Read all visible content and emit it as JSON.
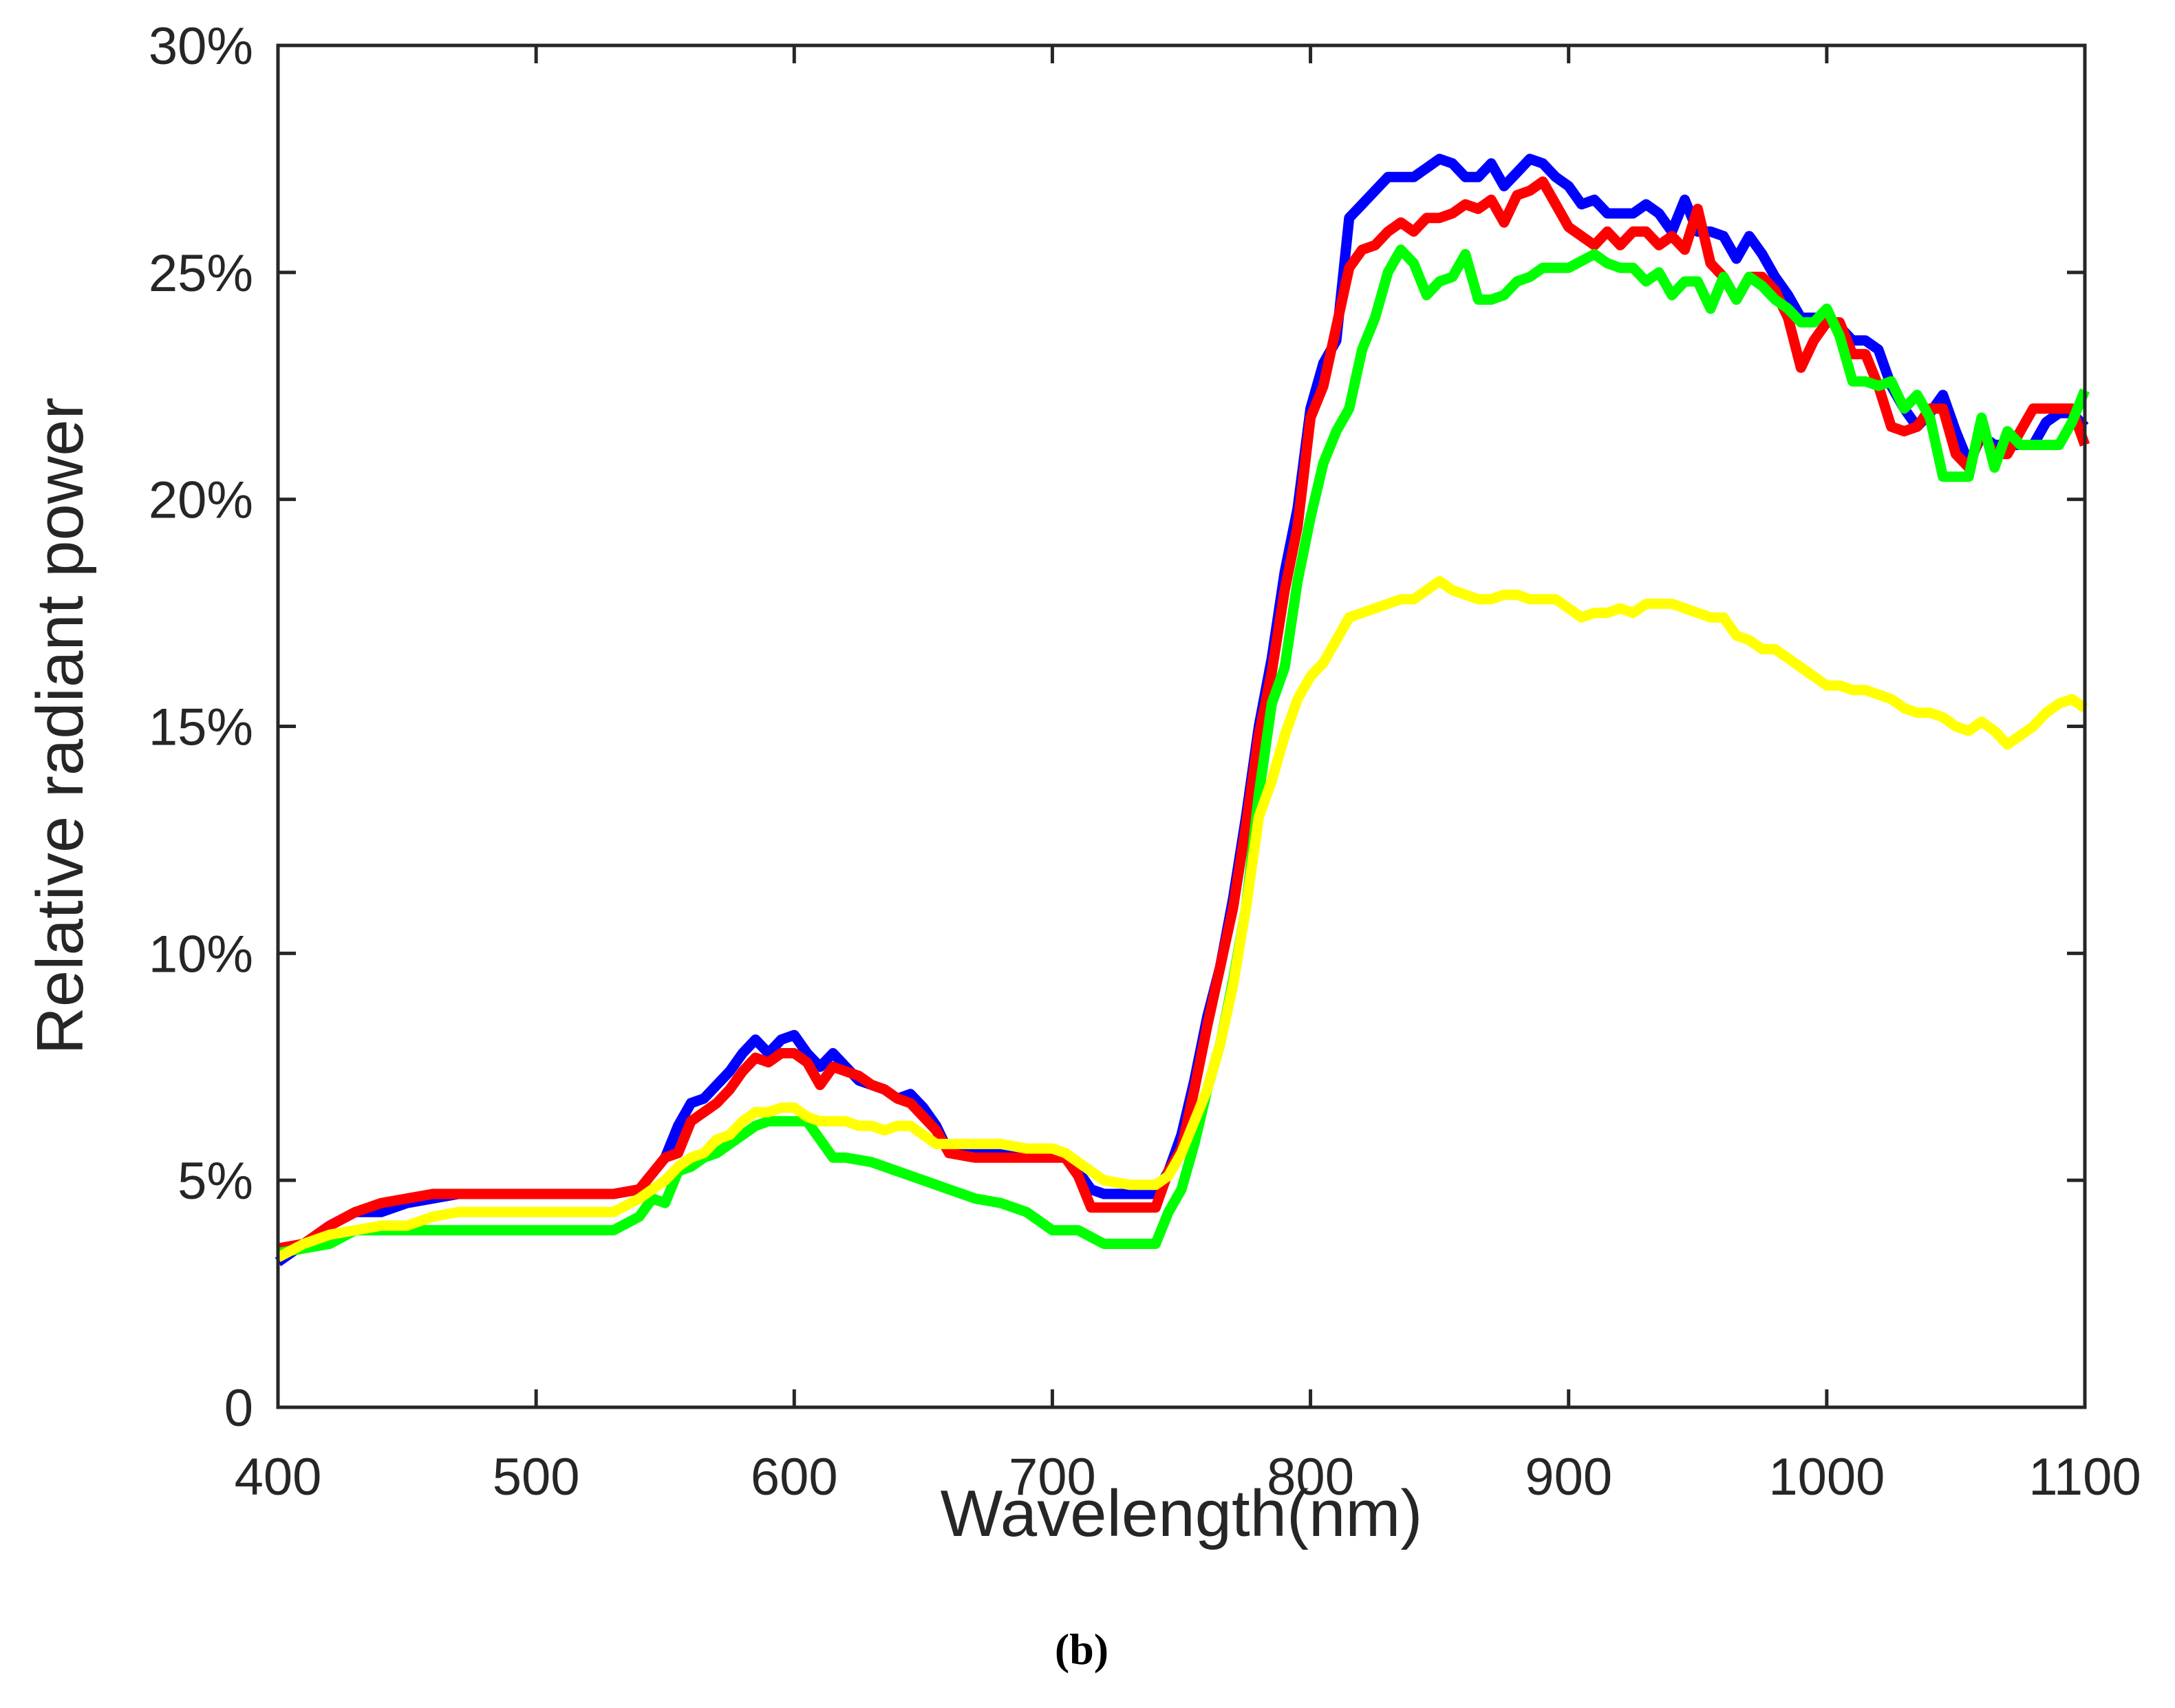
{
  "chart_data": {
    "type": "line",
    "title": "",
    "caption": "(b)",
    "xlabel": "Wavelength(nm)",
    "ylabel": "Relative radiant power",
    "xlim": [
      400,
      1100
    ],
    "ylim": [
      0,
      30
    ],
    "x_ticks": [
      400,
      500,
      600,
      700,
      800,
      900,
      1000,
      1100
    ],
    "x_tick_labels": [
      "400",
      "500",
      "600",
      "700",
      "800",
      "900",
      "1000",
      "1100"
    ],
    "y_ticks": [
      0,
      5,
      10,
      15,
      20,
      25,
      30
    ],
    "y_tick_labels": [
      "0",
      "5%",
      "10%",
      "15%",
      "20%",
      "25%",
      "30%"
    ],
    "grid": false,
    "legend": "none",
    "series": [
      {
        "name": "blue",
        "color": "#0000ff",
        "x": [
          400,
          410,
          420,
          430,
          440,
          450,
          460,
          470,
          480,
          490,
          500,
          510,
          520,
          530,
          540,
          550,
          555,
          560,
          565,
          570,
          575,
          580,
          585,
          590,
          595,
          600,
          605,
          610,
          615,
          620,
          625,
          630,
          635,
          640,
          645,
          650,
          655,
          660,
          670,
          680,
          690,
          700,
          705,
          710,
          715,
          720,
          730,
          740,
          745,
          750,
          755,
          760,
          765,
          770,
          775,
          780,
          785,
          790,
          795,
          800,
          805,
          810,
          815,
          820,
          825,
          830,
          835,
          840,
          845,
          850,
          855,
          860,
          865,
          870,
          875,
          880,
          885,
          890,
          895,
          900,
          905,
          910,
          915,
          920,
          925,
          930,
          935,
          940,
          945,
          950,
          955,
          960,
          965,
          970,
          975,
          980,
          985,
          990,
          995,
          1000,
          1005,
          1010,
          1015,
          1020,
          1025,
          1030,
          1035,
          1040,
          1045,
          1050,
          1055,
          1060,
          1065,
          1070,
          1075,
          1080,
          1085,
          1090,
          1095,
          1100
        ],
        "values": [
          3.2,
          3.6,
          4.0,
          4.3,
          4.3,
          4.5,
          4.6,
          4.7,
          4.7,
          4.7,
          4.7,
          4.7,
          4.7,
          4.7,
          4.8,
          5.5,
          6.2,
          6.7,
          6.8,
          7.1,
          7.4,
          7.8,
          8.1,
          7.8,
          8.1,
          8.2,
          7.8,
          7.5,
          7.8,
          7.5,
          7.2,
          7.1,
          7.0,
          6.8,
          6.9,
          6.6,
          6.2,
          5.6,
          5.6,
          5.6,
          5.6,
          5.6,
          5.6,
          5.2,
          4.8,
          4.7,
          4.7,
          4.7,
          5.2,
          6.0,
          7.2,
          8.6,
          9.7,
          11.2,
          13.0,
          15.0,
          16.5,
          18.4,
          19.8,
          22.0,
          23.0,
          23.5,
          26.2,
          26.5,
          26.8,
          27.1,
          27.1,
          27.1,
          27.3,
          27.5,
          27.4,
          27.1,
          27.1,
          27.4,
          26.9,
          27.2,
          27.5,
          27.4,
          27.1,
          26.9,
          26.5,
          26.6,
          26.3,
          26.3,
          26.3,
          26.5,
          26.3,
          25.9,
          26.6,
          25.9,
          25.9,
          25.8,
          25.3,
          25.8,
          25.4,
          24.9,
          24.5,
          24.0,
          24.0,
          24.0,
          23.8,
          23.5,
          23.5,
          23.3,
          22.5,
          22.0,
          21.6,
          21.9,
          22.3,
          21.5,
          20.8,
          21.4,
          21.2,
          21.2,
          21.2,
          21.2,
          21.7,
          21.9,
          21.9,
          21.6
        ],
        "ylim": [
          0,
          30
        ]
      },
      {
        "name": "red",
        "color": "#ff0000",
        "x": [
          400,
          410,
          420,
          430,
          440,
          450,
          460,
          470,
          480,
          490,
          500,
          510,
          520,
          530,
          540,
          550,
          555,
          560,
          565,
          570,
          575,
          580,
          585,
          590,
          595,
          600,
          605,
          610,
          615,
          620,
          625,
          630,
          635,
          640,
          645,
          650,
          655,
          660,
          670,
          680,
          690,
          700,
          705,
          710,
          715,
          720,
          730,
          740,
          745,
          750,
          755,
          760,
          765,
          770,
          775,
          780,
          785,
          790,
          795,
          800,
          805,
          810,
          815,
          820,
          825,
          830,
          835,
          840,
          845,
          850,
          855,
          860,
          865,
          870,
          875,
          880,
          885,
          890,
          895,
          900,
          905,
          910,
          915,
          920,
          925,
          930,
          935,
          940,
          945,
          950,
          955,
          960,
          965,
          970,
          975,
          980,
          985,
          990,
          995,
          1000,
          1005,
          1010,
          1015,
          1020,
          1025,
          1030,
          1035,
          1040,
          1045,
          1050,
          1055,
          1060,
          1065,
          1070,
          1075,
          1080,
          1085,
          1090,
          1095,
          1100
        ],
        "values": [
          3.5,
          3.6,
          4.0,
          4.3,
          4.5,
          4.6,
          4.7,
          4.7,
          4.7,
          4.7,
          4.7,
          4.7,
          4.7,
          4.7,
          4.8,
          5.5,
          5.6,
          6.3,
          6.5,
          6.7,
          7.0,
          7.4,
          7.7,
          7.6,
          7.8,
          7.8,
          7.6,
          7.1,
          7.5,
          7.4,
          7.3,
          7.1,
          7.0,
          6.8,
          6.7,
          6.4,
          6.1,
          5.6,
          5.5,
          5.5,
          5.5,
          5.5,
          5.5,
          5.1,
          4.4,
          4.4,
          4.4,
          4.4,
          5.2,
          5.7,
          7.0,
          8.4,
          9.7,
          11.0,
          12.8,
          14.8,
          16.2,
          18.0,
          19.4,
          21.8,
          22.5,
          23.8,
          25.1,
          25.5,
          25.6,
          25.9,
          26.1,
          25.9,
          26.2,
          26.2,
          26.3,
          26.5,
          26.4,
          26.6,
          26.1,
          26.7,
          26.8,
          27.0,
          26.5,
          26.0,
          25.8,
          25.6,
          25.9,
          25.6,
          25.9,
          25.9,
          25.6,
          25.8,
          25.5,
          26.4,
          25.2,
          24.9,
          24.4,
          24.9,
          24.9,
          24.6,
          24.0,
          22.9,
          23.5,
          23.9,
          23.9,
          23.2,
          23.2,
          22.5,
          21.6,
          21.5,
          21.6,
          22.0,
          22.0,
          21.0,
          20.7,
          21.5,
          21.0,
          21.0,
          21.5,
          22.0,
          22.0,
          22.0,
          22.0,
          21.2
        ],
        "ylim": [
          0,
          30
        ]
      },
      {
        "name": "green",
        "color": "#00ff00",
        "x": [
          400,
          410,
          420,
          430,
          440,
          450,
          460,
          470,
          480,
          490,
          500,
          510,
          520,
          530,
          540,
          545,
          550,
          555,
          560,
          565,
          570,
          575,
          580,
          585,
          590,
          595,
          600,
          605,
          610,
          615,
          620,
          630,
          640,
          650,
          660,
          670,
          680,
          690,
          700,
          710,
          720,
          730,
          740,
          745,
          750,
          755,
          760,
          765,
          770,
          775,
          780,
          785,
          790,
          795,
          800,
          805,
          810,
          815,
          820,
          825,
          830,
          835,
          840,
          845,
          850,
          855,
          860,
          865,
          870,
          875,
          880,
          885,
          890,
          900,
          910,
          915,
          920,
          925,
          930,
          935,
          940,
          945,
          950,
          955,
          960,
          965,
          970,
          975,
          980,
          985,
          990,
          995,
          1000,
          1005,
          1010,
          1015,
          1020,
          1025,
          1030,
          1035,
          1040,
          1045,
          1050,
          1055,
          1060,
          1065,
          1070,
          1075,
          1080,
          1085,
          1090,
          1095,
          1100
        ],
        "values": [
          3.4,
          3.5,
          3.6,
          3.9,
          3.9,
          3.9,
          3.9,
          3.9,
          3.9,
          3.9,
          3.9,
          3.9,
          3.9,
          3.9,
          4.2,
          4.6,
          4.5,
          5.2,
          5.3,
          5.5,
          5.6,
          5.8,
          6.0,
          6.2,
          6.3,
          6.3,
          6.3,
          6.3,
          5.9,
          5.5,
          5.5,
          5.4,
          5.2,
          5.0,
          4.8,
          4.6,
          4.5,
          4.3,
          3.9,
          3.9,
          3.6,
          3.6,
          3.6,
          4.3,
          4.8,
          5.8,
          7.0,
          8.0,
          9.4,
          11.0,
          13.5,
          15.5,
          16.3,
          18.2,
          19.6,
          20.8,
          21.5,
          22.0,
          23.3,
          24.0,
          25.0,
          25.5,
          25.2,
          24.5,
          24.8,
          24.9,
          25.4,
          24.4,
          24.4,
          24.5,
          24.8,
          24.9,
          25.1,
          25.1,
          25.4,
          25.2,
          25.1,
          25.1,
          24.8,
          25.0,
          24.5,
          24.8,
          24.8,
          24.2,
          24.9,
          24.4,
          24.9,
          24.7,
          24.4,
          24.2,
          23.9,
          23.9,
          24.2,
          23.6,
          22.6,
          22.6,
          22.5,
          22.6,
          22.0,
          22.3,
          21.8,
          20.5,
          20.5,
          20.5,
          21.8,
          20.7,
          21.5,
          21.2,
          21.2,
          21.2,
          21.2,
          21.7,
          22.4
        ],
        "ylim": [
          0,
          30
        ]
      },
      {
        "name": "yellow",
        "color": "#ffff00",
        "x": [
          400,
          410,
          420,
          430,
          440,
          450,
          460,
          470,
          480,
          490,
          500,
          510,
          520,
          530,
          540,
          550,
          555,
          560,
          565,
          570,
          575,
          580,
          585,
          590,
          595,
          600,
          605,
          610,
          615,
          620,
          625,
          630,
          635,
          640,
          645,
          650,
          655,
          660,
          670,
          680,
          690,
          700,
          705,
          710,
          715,
          720,
          730,
          740,
          745,
          750,
          755,
          760,
          765,
          770,
          775,
          780,
          785,
          790,
          795,
          800,
          805,
          810,
          815,
          820,
          825,
          830,
          835,
          840,
          845,
          850,
          855,
          860,
          865,
          870,
          875,
          880,
          885,
          890,
          895,
          900,
          905,
          910,
          915,
          920,
          925,
          930,
          935,
          940,
          945,
          950,
          955,
          960,
          965,
          970,
          975,
          980,
          985,
          990,
          995,
          1000,
          1005,
          1010,
          1015,
          1020,
          1025,
          1030,
          1035,
          1040,
          1045,
          1050,
          1055,
          1060,
          1065,
          1070,
          1075,
          1080,
          1085,
          1090,
          1095,
          1100
        ],
        "values": [
          3.3,
          3.6,
          3.8,
          3.9,
          4.0,
          4.0,
          4.2,
          4.3,
          4.3,
          4.3,
          4.3,
          4.3,
          4.3,
          4.3,
          4.6,
          5.0,
          5.3,
          5.5,
          5.6,
          5.9,
          6.0,
          6.3,
          6.5,
          6.5,
          6.6,
          6.6,
          6.4,
          6.3,
          6.3,
          6.3,
          6.2,
          6.2,
          6.1,
          6.2,
          6.2,
          6.0,
          5.8,
          5.8,
          5.8,
          5.8,
          5.7,
          5.7,
          5.6,
          5.4,
          5.2,
          5.0,
          4.9,
          4.9,
          5.1,
          5.6,
          6.3,
          7.0,
          8.0,
          9.3,
          11.0,
          13.0,
          13.8,
          14.8,
          15.6,
          16.1,
          16.4,
          16.9,
          17.4,
          17.5,
          17.6,
          17.7,
          17.8,
          17.8,
          18.0,
          18.2,
          18.0,
          17.9,
          17.8,
          17.8,
          17.9,
          17.9,
          17.8,
          17.8,
          17.8,
          17.6,
          17.4,
          17.5,
          17.5,
          17.6,
          17.5,
          17.7,
          17.7,
          17.7,
          17.6,
          17.5,
          17.4,
          17.4,
          17.0,
          16.9,
          16.7,
          16.7,
          16.5,
          16.3,
          16.1,
          15.9,
          15.9,
          15.8,
          15.8,
          15.7,
          15.6,
          15.4,
          15.3,
          15.3,
          15.2,
          15.0,
          14.9,
          15.1,
          14.9,
          14.6,
          14.8,
          15.0,
          15.3,
          15.5,
          15.6,
          15.4
        ],
        "ylim": [
          0,
          30
        ]
      }
    ]
  }
}
